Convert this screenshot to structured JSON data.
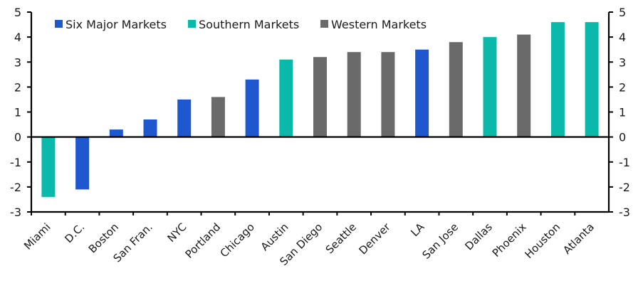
{
  "chart_data": {
    "type": "bar",
    "title": "",
    "xlabel": "",
    "ylabel": "",
    "ylim": [
      -3,
      5
    ],
    "yticks": [
      -3,
      -2,
      -1,
      0,
      1,
      2,
      3,
      4,
      5
    ],
    "secondary_yaxis": true,
    "grid": false,
    "legend_position": "top-left-inside",
    "legend": [
      {
        "name": "Six Major Markets",
        "color": "#1f57cf"
      },
      {
        "name": "Southern Markets",
        "color": "#0bb9ab"
      },
      {
        "name": "Western Markets",
        "color": "#6a6a6a"
      }
    ],
    "categories": [
      "Miami",
      "D.C.",
      "Boston",
      "San Fran.",
      "NYC",
      "Portland",
      "Chicago",
      "Austin",
      "San Diego",
      "Seattle",
      "Denver",
      "LA",
      "San Jose",
      "Dallas",
      "Phoenix",
      "Houston",
      "Atlanta"
    ],
    "values": [
      -2.4,
      -2.1,
      0.3,
      0.7,
      1.5,
      1.6,
      2.3,
      3.1,
      3.2,
      3.4,
      3.4,
      3.5,
      3.8,
      4.0,
      4.1,
      4.6,
      4.6
    ],
    "groups": [
      "Southern Markets",
      "Six Major Markets",
      "Six Major Markets",
      "Six Major Markets",
      "Six Major Markets",
      "Western Markets",
      "Six Major Markets",
      "Southern Markets",
      "Western Markets",
      "Western Markets",
      "Western Markets",
      "Six Major Markets",
      "Western Markets",
      "Southern Markets",
      "Western Markets",
      "Southern Markets",
      "Southern Markets"
    ]
  }
}
